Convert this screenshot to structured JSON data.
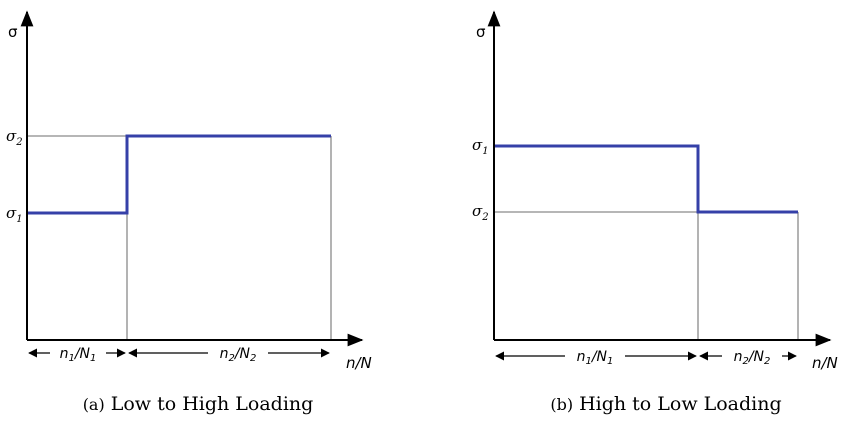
{
  "panel_a": {
    "y_axis_label": "σ",
    "x_axis_label": "n/N",
    "level_upper": {
      "base": "σ",
      "sub": "2"
    },
    "level_lower": {
      "base": "σ",
      "sub": "1"
    },
    "segment_1": {
      "n": "n",
      "n_sub": "1",
      "N": "N",
      "N_sub": "1"
    },
    "segment_2": {
      "n": "n",
      "n_sub": "2",
      "N": "N",
      "N_sub": "2"
    },
    "caption_tag": "(a)",
    "caption_text": "Low to High Loading"
  },
  "panel_b": {
    "y_axis_label": "σ",
    "x_axis_label": "n/N",
    "level_upper": {
      "base": "σ",
      "sub": "1"
    },
    "level_lower": {
      "base": "σ",
      "sub": "2"
    },
    "segment_1": {
      "n": "n",
      "n_sub": "1",
      "N": "N",
      "N_sub": "1"
    },
    "segment_2": {
      "n": "n",
      "n_sub": "2",
      "N": "N",
      "N_sub": "2"
    },
    "caption_tag": "(b)",
    "caption_text": "High to Low Loading"
  },
  "colors": {
    "load_path": "#3540a8",
    "guide": "#8a8a8a",
    "axis": "#000000"
  }
}
